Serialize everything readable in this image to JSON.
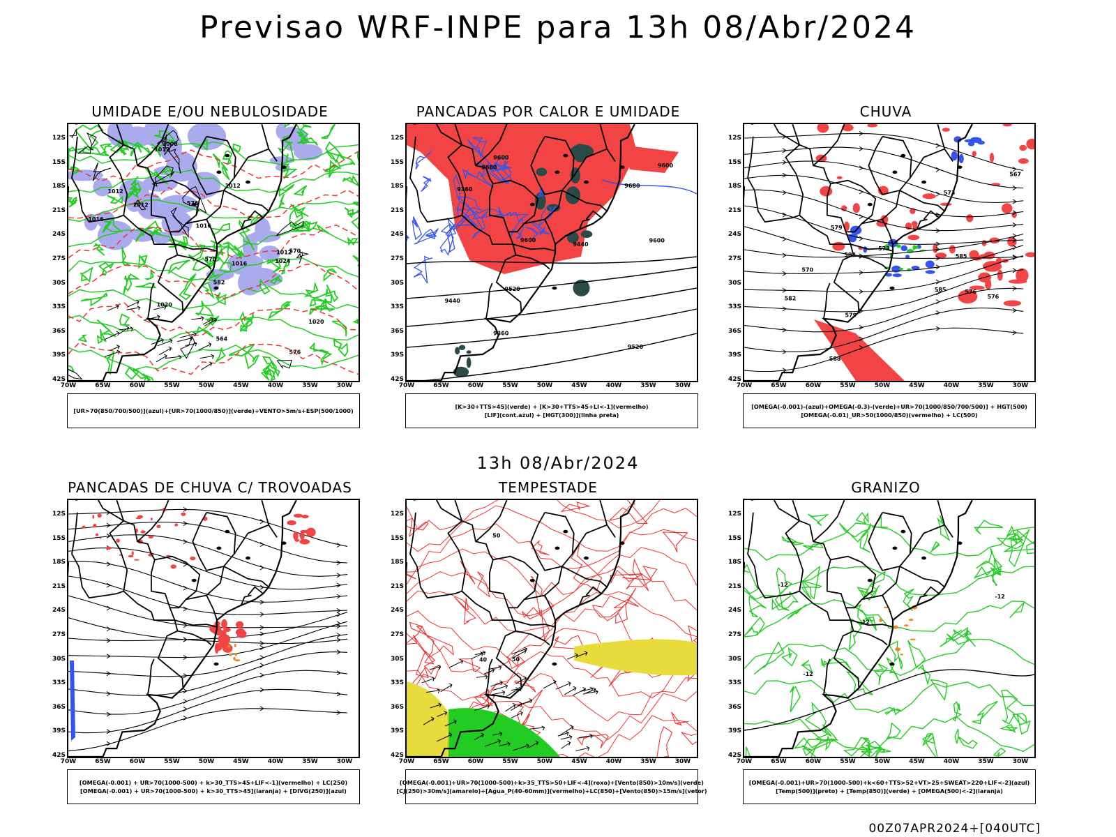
{
  "main_title": "Previsao WRF-INPE  para 13h 08/Abr/2024",
  "mid_title": "13h 08/Abr/2024",
  "footer": "00Z07APR2024+[040UTC]",
  "lat_labels": [
    "12S",
    "15S",
    "18S",
    "21S",
    "24S",
    "27S",
    "30S",
    "33S",
    "36S",
    "39S",
    "42S"
  ],
  "lon_labels": [
    "70W",
    "65W",
    "60W",
    "55W",
    "50W",
    "45W",
    "40W",
    "35W",
    "30W"
  ],
  "colors": {
    "blue_shade": "#aaaaee",
    "green_line": "#22cc22",
    "red_line": "#ee3333",
    "red_fill": "#f24444",
    "dark_teal": "#2a4a48",
    "blue_line": "#3355ee",
    "yellow_fill": "#e8dc3c",
    "green_fill": "#22cc22",
    "orange": "#ee8822",
    "black": "#000000"
  },
  "panels": [
    {
      "title": "UMIDADE E/OU NEBULOSIDADE",
      "legend": [
        "[UR>70(850/700/500)](azul)+[UR>70(1000/850)](verde)+VENTO>5m/s+ESP(500/1000)"
      ],
      "contour_labels": [
        "1012",
        "1012",
        "1016",
        "1012",
        "1020",
        "1012",
        "1016",
        "1016",
        "1020",
        "1024",
        "1008",
        "1012",
        "576",
        "570",
        "582",
        "564",
        "576",
        "570"
      ]
    },
    {
      "title": "PANCADAS POR CALOR E UMIDADE",
      "legend": [
        "[K>30+TTS>45](verde) + [K>30+TTS>45+LI<-1](vermelho)",
        "[LIF](cont.azul) + [HGT(300)](linha preta)"
      ],
      "contour_labels": [
        "9680",
        "9600",
        "9600",
        "9520",
        "9440",
        "9360",
        "9440",
        "9360",
        "9520",
        "9600",
        "9680",
        "9600"
      ]
    },
    {
      "title": "CHUVA",
      "legend": [
        "[OMEGA(-0.001)-(azul)+OMEGA(-0.3)-(verde)+UR>70(1000/850/700/500)] + HGT(500)",
        "[OMEGA(-0.01)_UR>50(1000/850)(vermelho) + LC(500)"
      ],
      "contour_labels": [
        "588",
        "585",
        "582",
        "579",
        "576",
        "573",
        "570",
        "567",
        "585",
        "582",
        "579",
        "576",
        "573"
      ]
    },
    {
      "title": "PANCADAS DE CHUVA C/ TROVOADAS",
      "legend": [
        "[OMEGA(-0.001) + UR>70(1000-500) + k>30_TTS>45+LIF<-1](vermelho) + LC(250)",
        "[OMEGA(-0.001) + UR>70(1000-500) + k>30_TTS>45](laranja) + [DIVG(250)](azul)"
      ],
      "contour_labels": []
    },
    {
      "title": "TEMPESTADE",
      "legend": [
        "[OMEGA(-0.001)+UR>70(1000-500)+k>35_TTS>50+LIF<-4](roxo)+[Vento(850)>10m/s](verde)",
        "[CJ(250)>30m/s](amarelo)+[Agua_P(40-60mm)](vermelho)+LC(850)+[Vento(850)>15m/s](vetor)"
      ],
      "contour_labels": [
        "50",
        "50",
        "40"
      ]
    },
    {
      "title": "GRANIZO",
      "legend": [
        "[OMEGA(-0.001)+UR>70(1000-500)+k<60+TTS>52+VT>25+SWEAT>220+LIF<-2](azul)",
        "[Temp(500)](preto) + [Temp(850)](verde) + [OMEGA(500)<-2](laranja)"
      ],
      "contour_labels": [
        "-12",
        "-12",
        "-12",
        "-12"
      ]
    }
  ]
}
